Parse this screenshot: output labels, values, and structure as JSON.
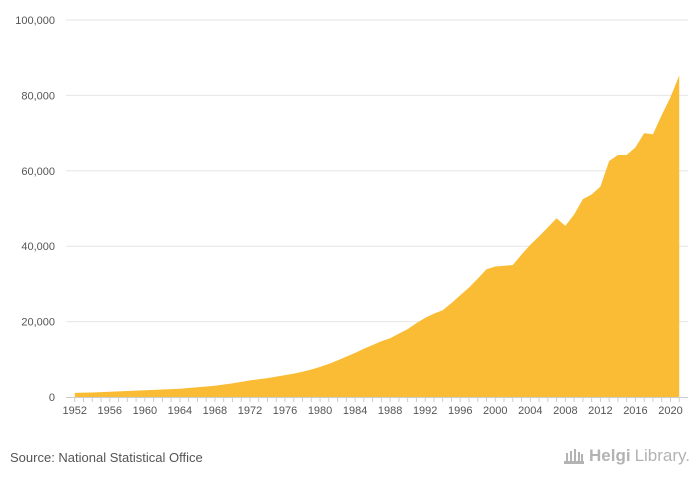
{
  "chart_data": {
    "type": "area",
    "title": "",
    "xlabel": "",
    "ylabel": "",
    "ylim": [
      0,
      100000
    ],
    "xlim": [
      1952,
      2021
    ],
    "grid": true,
    "yticks": [
      0,
      20000,
      40000,
      60000,
      80000,
      100000
    ],
    "ytick_labels": [
      "0",
      "20,000",
      "40,000",
      "60,000",
      "80,000",
      "100,000"
    ],
    "xticks": [
      1952,
      1956,
      1960,
      1964,
      1968,
      1972,
      1976,
      1980,
      1984,
      1988,
      1992,
      1996,
      2000,
      2004,
      2008,
      2012,
      2016,
      2020
    ],
    "fill_color": "#f9bc34",
    "series": [
      {
        "name": "value",
        "x": [
          1952,
          1953,
          1954,
          1955,
          1956,
          1957,
          1958,
          1959,
          1960,
          1961,
          1962,
          1963,
          1964,
          1965,
          1966,
          1967,
          1968,
          1969,
          1970,
          1971,
          1972,
          1973,
          1974,
          1975,
          1976,
          1977,
          1978,
          1979,
          1980,
          1981,
          1982,
          1983,
          1984,
          1985,
          1986,
          1987,
          1988,
          1989,
          1990,
          1991,
          1992,
          1993,
          1994,
          1995,
          1996,
          1997,
          1998,
          1999,
          2000,
          2001,
          2002,
          2003,
          2004,
          2005,
          2006,
          2007,
          2008,
          2009,
          2010,
          2011,
          2012,
          2013,
          2014,
          2015,
          2016,
          2017,
          2018,
          2019,
          2020,
          2021
        ],
        "values": [
          1100,
          1150,
          1200,
          1300,
          1400,
          1500,
          1600,
          1700,
          1800,
          1900,
          2000,
          2100,
          2200,
          2400,
          2600,
          2800,
          3000,
          3300,
          3600,
          4000,
          4400,
          4700,
          5000,
          5400,
          5800,
          6200,
          6700,
          7300,
          8000,
          8800,
          9700,
          10700,
          11700,
          12800,
          13800,
          14800,
          15600,
          16800,
          18000,
          19600,
          21000,
          22100,
          23000,
          24900,
          27000,
          29000,
          31400,
          33900,
          34600,
          34800,
          35000,
          37800,
          40400,
          42600,
          45000,
          47400,
          45400,
          48400,
          52500,
          53700,
          55800,
          62600,
          64200,
          64200,
          66200,
          70000,
          69700,
          74800,
          79500,
          85300
        ]
      }
    ]
  },
  "footer": {
    "source": "Source: National Statistical Office",
    "brand_bold": "Helgi",
    "brand_light": "Library."
  }
}
